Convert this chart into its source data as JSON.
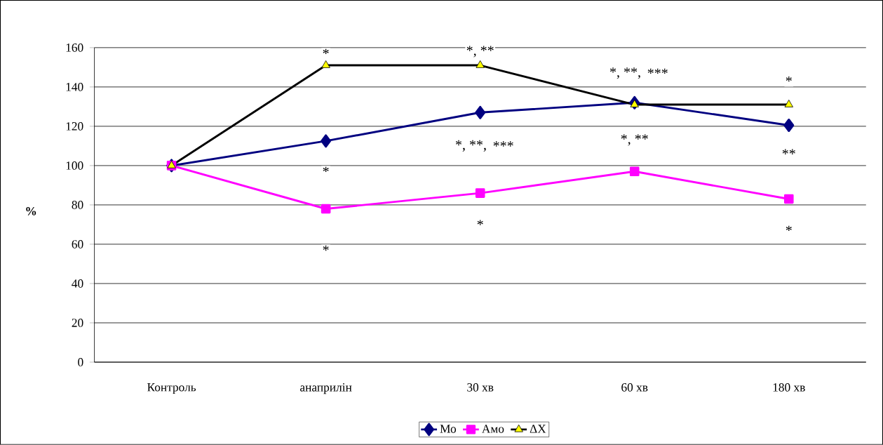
{
  "chart_data": {
    "type": "line",
    "ylabel": "%",
    "categories": [
      "Контроль",
      "анаприлін",
      "30 хв",
      "60 хв",
      "180 хв"
    ],
    "series": [
      {
        "name": "Мо",
        "color": "#000080",
        "marker": "diamond",
        "values": [
          100,
          112.5,
          127,
          132,
          120.5
        ]
      },
      {
        "name": "Амо",
        "color": "#ff00ff",
        "marker": "square",
        "values": [
          100,
          78,
          86,
          97,
          83
        ]
      },
      {
        "name": "ΔX",
        "color": "#000000",
        "marker": "triangle",
        "values": [
          100,
          151,
          151,
          131,
          131
        ]
      }
    ],
    "ylim": [
      0,
      160
    ],
    "yticks": [
      0,
      20,
      40,
      60,
      80,
      100,
      120,
      140,
      160
    ],
    "grid": "y",
    "legend": "bottom",
    "line_style": "solid",
    "annotations": [
      "*",
      "*, **",
      "*, **,",
      "***",
      "*",
      "*",
      "*, **,",
      "***",
      "*, **",
      "**",
      "*",
      "*",
      "*"
    ]
  }
}
